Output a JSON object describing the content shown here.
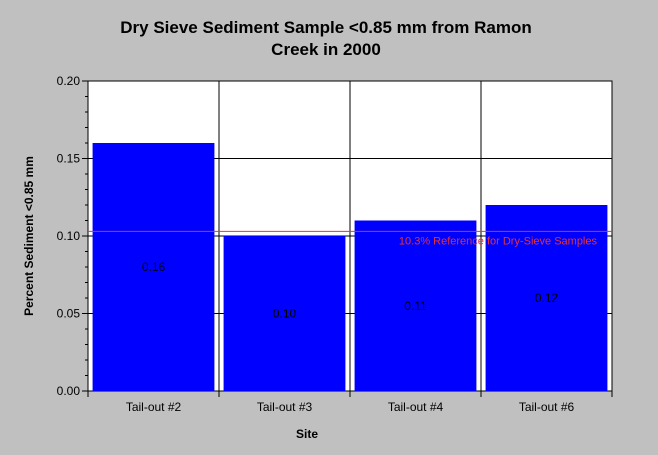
{
  "chart_data": {
    "type": "bar",
    "title_lines": [
      "Dry Sieve Sediment Sample <0.85 mm from Ramon",
      "Creek in 2000"
    ],
    "xlabel": "Site",
    "ylabel": "Percent Sediment <0.85 mm",
    "categories": [
      "Tail-out #2",
      "Tail-out #3",
      "Tail-out #4",
      "Tail-out #6"
    ],
    "values": [
      0.16,
      0.1,
      0.11,
      0.12
    ],
    "data_labels": [
      "0.16",
      "0.10",
      "0.11",
      "0.12"
    ],
    "ylim": [
      0,
      0.2
    ],
    "yticks": [
      0.0,
      0.05,
      0.1,
      0.15,
      0.2
    ],
    "ytick_labels": [
      "0.00",
      "0.05",
      "0.10",
      "0.15",
      "0.20"
    ],
    "grid": true,
    "reference_line": {
      "value": 0.103,
      "label": "10.3% Reference for Dry-Sieve Samples"
    },
    "colors": {
      "bar": "#0000ff",
      "reference": "#e8303a",
      "plot_bg": "#ffffff",
      "page_bg": "#c0c0c0"
    }
  }
}
